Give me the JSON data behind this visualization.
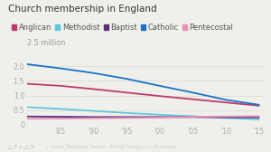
{
  "title": "Church membership in England",
  "ylabel_text": "2.5 million",
  "xlabel_note": "Data: Religious Trends, British Religion in Numbers",
  "atlas_note": "△ T L △ S",
  "years": [
    1980,
    1985,
    1990,
    1995,
    2000,
    2005,
    2010,
    2015
  ],
  "series": {
    "Anglican": [
      1.4,
      1.33,
      1.22,
      1.1,
      0.98,
      0.87,
      0.76,
      0.65
    ],
    "Methodist": [
      0.6,
      0.54,
      0.47,
      0.4,
      0.34,
      0.29,
      0.23,
      0.18
    ],
    "Baptist": [
      0.28,
      0.27,
      0.26,
      0.26,
      0.26,
      0.26,
      0.25,
      0.25
    ],
    "Catholic": [
      2.07,
      1.93,
      1.77,
      1.57,
      1.33,
      1.1,
      0.85,
      0.68
    ],
    "Pentecostal": [
      0.2,
      0.21,
      0.22,
      0.23,
      0.24,
      0.27,
      0.28,
      0.29
    ]
  },
  "colors": {
    "Anglican": "#c0396e",
    "Methodist": "#5dc8e0",
    "Baptist": "#5b2d82",
    "Catholic": "#1a72c9",
    "Pentecostal": "#e891b8"
  },
  "ylim": [
    0,
    2.5
  ],
  "xlim": [
    1980,
    2016
  ],
  "xticks": [
    1985,
    1990,
    1995,
    2000,
    2005,
    2010,
    2015
  ],
  "xtick_labels": [
    "'85",
    "'90",
    "'95",
    "'00",
    "'05",
    "'10",
    "'15"
  ],
  "yticks": [
    0.0,
    0.5,
    1.0,
    1.5,
    2.0
  ],
  "ytick_labels": [
    "0",
    "0.5",
    "1.0",
    "1.5",
    "2.0"
  ],
  "background_color": "#f0f0eb",
  "grid_color": "#ddddd8",
  "title_fontsize": 7.5,
  "legend_fontsize": 6.0,
  "tick_fontsize": 5.8,
  "line_width": 1.3
}
